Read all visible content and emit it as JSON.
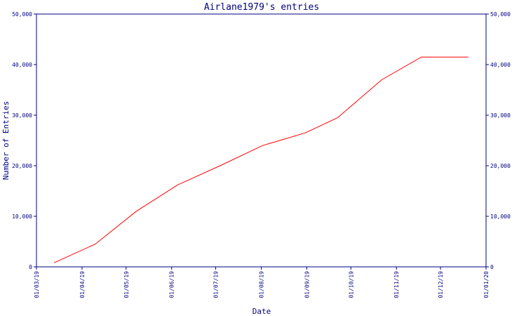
{
  "chart_data": {
    "type": "line",
    "title": "Airlane1979's entries",
    "xlabel": "Date",
    "ylabel": "Number of Entries",
    "x_type": "date",
    "xlim": [
      "2019-03-01",
      "2020-01-01"
    ],
    "ylim": [
      0,
      50000
    ],
    "x_tick_values": [
      "2019-03-01",
      "2019-04-01",
      "2019-05-01",
      "2019-06-01",
      "2019-07-01",
      "2019-08-01",
      "2019-09-01",
      "2019-10-01",
      "2019-11-01",
      "2019-12-01",
      "2020-01-01"
    ],
    "x_tick_labels": [
      "01/03/19",
      "01/04/19",
      "01/05/19",
      "01/06/19",
      "01/07/19",
      "01/08/19",
      "01/09/19",
      "01/10/19",
      "01/11/19",
      "01/12/19",
      "01/01/20"
    ],
    "y_tick_values": [
      0,
      10000,
      20000,
      30000,
      40000,
      50000
    ],
    "y_tick_labels": [
      "0",
      "10,000",
      "20,000",
      "30,000",
      "40,000",
      "50,000"
    ],
    "grid": false,
    "legend": "none",
    "right_axis_mirror": true,
    "colors": {
      "axes": "#000080",
      "line": "#ff0000",
      "background": "#ffffff"
    },
    "series": [
      {
        "x": [
          "2019-03-13",
          "2019-04-10",
          "2019-05-08",
          "2019-06-05",
          "2019-07-04",
          "2019-08-02",
          "2019-08-31",
          "2019-09-22",
          "2019-10-22",
          "2019-11-18",
          "2019-12-20"
        ],
        "y": [
          800,
          4500,
          11000,
          16200,
          20000,
          24000,
          26500,
          29500,
          37000,
          41500,
          41500
        ]
      }
    ]
  }
}
